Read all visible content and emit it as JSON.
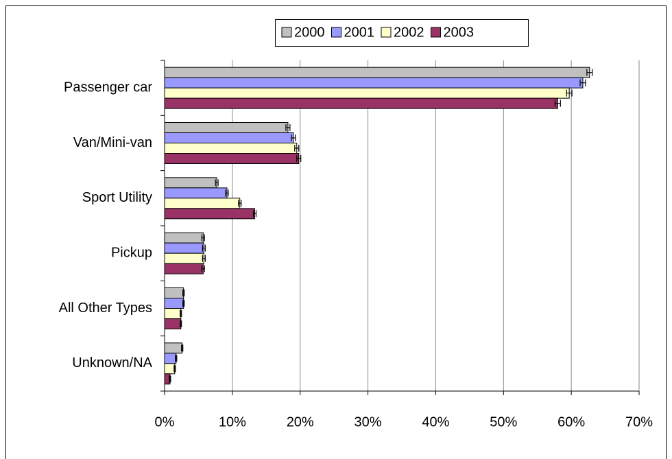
{
  "chart_data": {
    "type": "hbar",
    "categories": [
      "Passenger car",
      "Van/Mini-van",
      "Sport Utility",
      "Pickup",
      "All Other Types",
      "Unknown/NA"
    ],
    "series": [
      {
        "name": "2000",
        "color": "#c0c0c0",
        "values": [
          62.7,
          18.2,
          7.7,
          5.7,
          2.8,
          2.6
        ],
        "errors": [
          0.4,
          0.3,
          0.2,
          0.2,
          0.1,
          0.1
        ]
      },
      {
        "name": "2001",
        "color": "#9999ff",
        "values": [
          61.7,
          19.0,
          9.2,
          5.8,
          2.8,
          1.7
        ],
        "errors": [
          0.4,
          0.3,
          0.2,
          0.2,
          0.1,
          0.1
        ]
      },
      {
        "name": "2002",
        "color": "#ffffcc",
        "values": [
          59.7,
          19.5,
          11.1,
          5.8,
          2.4,
          1.5
        ],
        "errors": [
          0.4,
          0.3,
          0.2,
          0.2,
          0.1,
          0.1
        ]
      },
      {
        "name": "2003",
        "color": "#993366",
        "values": [
          58.0,
          19.8,
          13.3,
          5.7,
          2.4,
          0.8
        ],
        "errors": [
          0.4,
          0.3,
          0.2,
          0.2,
          0.1,
          0.1
        ]
      }
    ],
    "xlim": [
      0,
      70
    ],
    "xticks": [
      {
        "value": 0,
        "label": "0%"
      },
      {
        "value": 10,
        "label": "10%"
      },
      {
        "value": 20,
        "label": "20%"
      },
      {
        "value": 30,
        "label": "30%"
      },
      {
        "value": 40,
        "label": "40%"
      },
      {
        "value": 50,
        "label": "50%"
      },
      {
        "value": 60,
        "label": "60%"
      },
      {
        "value": 70,
        "label": "70%"
      }
    ],
    "grid": true,
    "legend": "top"
  }
}
